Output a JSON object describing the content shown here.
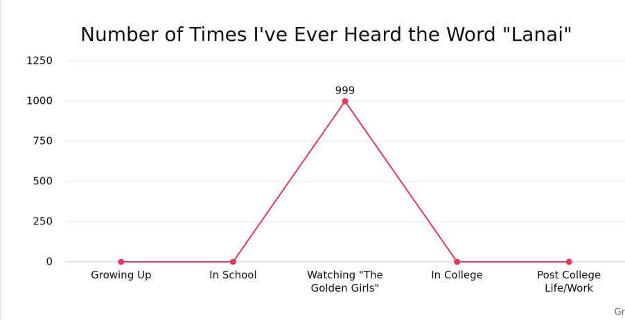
{
  "chart_data": {
    "type": "line",
    "title": "Number of Times I've Ever Heard the Word \"Lanai\"",
    "categories": [
      "Growing Up",
      "In School",
      "Watching \"The Golden Girls\"",
      "In College",
      "Post College Life/Work"
    ],
    "values": [
      0,
      0,
      999,
      0,
      0
    ],
    "value_labels": [
      null,
      null,
      "999",
      null,
      null
    ],
    "color": "#e8375a",
    "ylim": [
      0,
      1250
    ],
    "yticks": [
      0,
      250,
      500,
      750,
      1000,
      1250
    ],
    "grid": true,
    "credit": "Gr"
  }
}
